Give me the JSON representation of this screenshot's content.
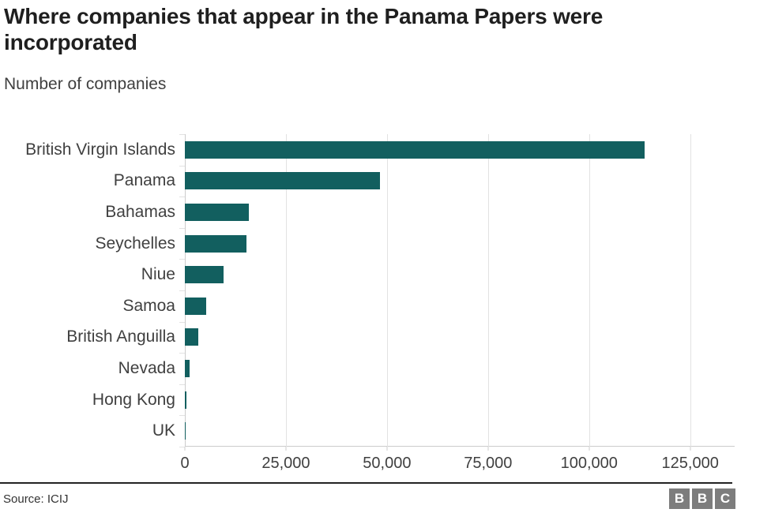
{
  "header": {
    "title": "Where companies that appear in the Panama Papers were incorporated",
    "subtitle": "Number of companies"
  },
  "chart_data": {
    "type": "bar",
    "orientation": "horizontal",
    "title": "Where companies that appear in the Panama Papers were incorporated",
    "subtitle": "Number of companies",
    "xlabel": "",
    "ylabel": "Number of companies",
    "categories": [
      "British Virgin Islands",
      "Panama",
      "Bahamas",
      "Seychelles",
      "Niue",
      "Samoa",
      "British Anguilla",
      "Nevada",
      "Hong Kong",
      "UK"
    ],
    "values": [
      113648,
      48360,
      15915,
      15182,
      9611,
      5307,
      3253,
      1260,
      452,
      148
    ],
    "xlim": [
      0,
      136000
    ],
    "grid": "vertical-gridlines-on",
    "legend": "none",
    "ticks": [
      {
        "value": 0,
        "label": "0"
      },
      {
        "value": 25000,
        "label": "25,000"
      },
      {
        "value": 50000,
        "label": "50,000"
      },
      {
        "value": 75000,
        "label": "75,000"
      },
      {
        "value": 100000,
        "label": "100,000"
      },
      {
        "value": 125000,
        "label": "125,000"
      }
    ]
  },
  "footer": {
    "source": "Source: ICIJ",
    "logo_letters": [
      "B",
      "B",
      "C"
    ]
  },
  "colors": {
    "bar": "#125f5f",
    "grid": "#e2e2e2",
    "axis": "#cccccc",
    "title_text": "#1f1f1f",
    "body_text": "#404040",
    "logo_bg": "#7d7d7d"
  }
}
